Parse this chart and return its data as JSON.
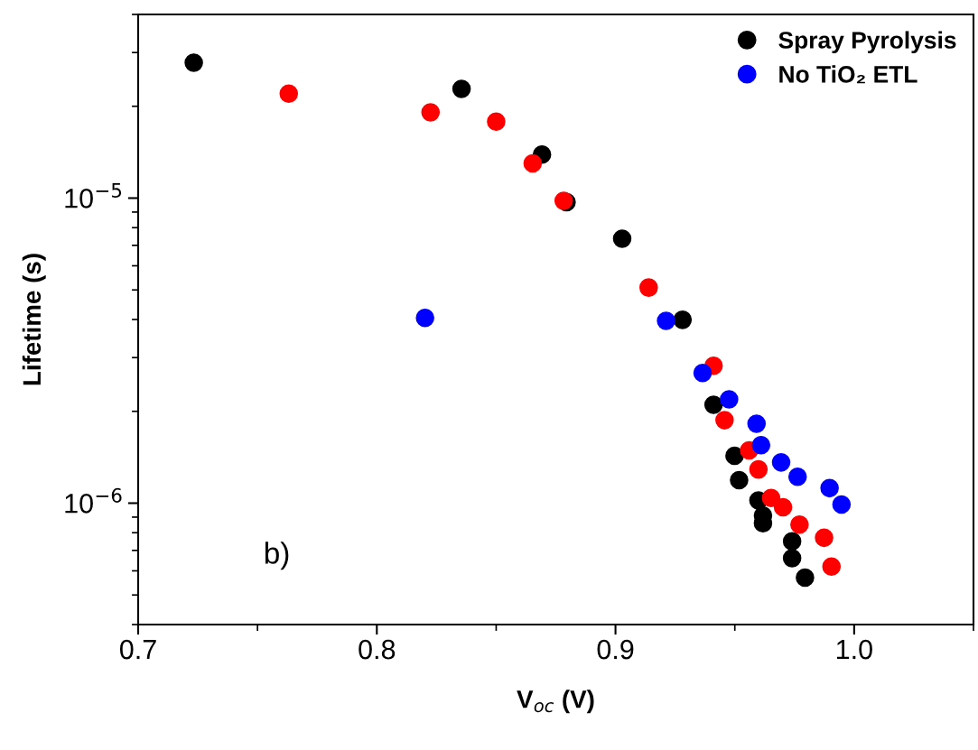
{
  "chart_data": {
    "type": "scatter",
    "xlabel": "V$_{oc}$ (V)",
    "ylabel": "Lifetime (s)",
    "log": "y",
    "marker": "circle",
    "legend": "top right",
    "grid": false,
    "xlim": [
      0.7,
      1.05
    ],
    "xticks": [
      {
        "value": 0.7,
        "label": "0.7"
      },
      {
        "value": 0.8,
        "label": "0.8"
      },
      {
        "value": 0.9,
        "label": "0.9"
      },
      {
        "value": 1.0,
        "label": "1.0"
      }
    ],
    "ylim": [
      4e-07,
      4e-05
    ],
    "yticks": [
      {
        "value": 1e-06,
        "label": "10$^{−6}$"
      },
      {
        "value": 1e-05,
        "label": "10$^{−5}$"
      }
    ],
    "annotations": [
      "b)"
    ],
    "series": [
      {
        "name": "Spray Pyrolysis",
        "color": "#000000",
        "x": [
          0.7233,
          0.8355,
          0.8692,
          0.8795,
          0.9028,
          0.9281,
          0.9411,
          0.9499,
          0.9518,
          0.9599,
          0.9618,
          0.9618,
          0.974,
          0.974,
          0.9794
        ],
        "values": [
          2.78e-05,
          2.28e-05,
          1.39e-05,
          9.7e-06,
          7.36e-06,
          3.99e-06,
          2.1e-06,
          1.43e-06,
          1.19e-06,
          1.02e-06,
          9.1e-07,
          8.6e-07,
          7.5e-07,
          6.6e-07,
          5.7e-07
        ]
      },
      {
        "color": "#ff0000",
        "x": [
          0.7631,
          0.8225,
          0.85,
          0.8653,
          0.8783,
          0.9139,
          0.9411,
          0.9457,
          0.956,
          0.9599,
          0.9652,
          0.9702,
          0.9771,
          0.9874,
          0.9905
        ],
        "values": [
          2.2e-05,
          1.91e-05,
          1.78e-05,
          1.3e-05,
          9.8e-06,
          5.09e-06,
          2.82e-06,
          1.87e-06,
          1.49e-06,
          1.29e-06,
          1.04e-06,
          9.7e-07,
          8.5e-07,
          7.7e-07,
          6.2e-07
        ]
      },
      {
        "name": "No TiO₂ ETL",
        "color": "#0000ff",
        "x": [
          0.8202,
          0.9212,
          0.9365,
          0.9476,
          0.9591,
          0.961,
          0.9694,
          0.9763,
          0.9897,
          0.9947
        ],
        "values": [
          4.05e-06,
          3.96e-06,
          2.67e-06,
          2.19e-06,
          1.82e-06,
          1.55e-06,
          1.36e-06,
          1.22e-06,
          1.12e-06,
          9.9e-07
        ]
      }
    ]
  }
}
